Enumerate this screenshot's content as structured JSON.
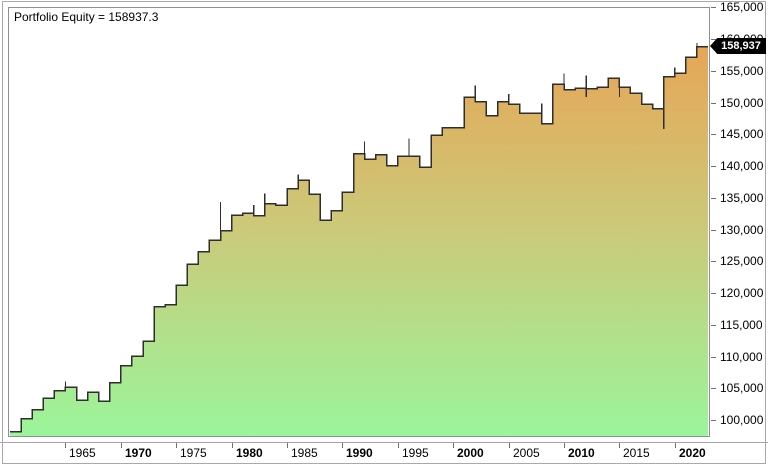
{
  "title": "Portfolio Equity = 158937.3",
  "chart_data": {
    "type": "area",
    "style": "step-area-annual",
    "title": "Portfolio Equity = 158937.3",
    "series_name": "Portfolio Equity",
    "final_value": 158937.3,
    "final_value_label": "158,937",
    "grid": "off",
    "legend_position": "none",
    "years": [
      1960,
      1961,
      1962,
      1963,
      1964,
      1965,
      1966,
      1967,
      1968,
      1969,
      1970,
      1971,
      1972,
      1973,
      1974,
      1975,
      1976,
      1977,
      1978,
      1979,
      1980,
      1981,
      1982,
      1983,
      1984,
      1985,
      1986,
      1987,
      1988,
      1989,
      1990,
      1991,
      1992,
      1993,
      1994,
      1995,
      1996,
      1997,
      1998,
      1999,
      2000,
      2001,
      2002,
      2003,
      2004,
      2005,
      2006,
      2007,
      2008,
      2009,
      2010,
      2011,
      2012,
      2013,
      2014,
      2015,
      2016,
      2017,
      2018,
      2019,
      2020,
      2021,
      2022
    ],
    "values": [
      98300,
      100400,
      101800,
      103600,
      104800,
      105300,
      103300,
      104500,
      103100,
      106000,
      108700,
      110200,
      112600,
      118000,
      118300,
      121400,
      124700,
      126700,
      128500,
      130000,
      132400,
      132700,
      132300,
      134200,
      134000,
      136600,
      137900,
      135700,
      131600,
      133100,
      136000,
      142100,
      141200,
      141900,
      140200,
      141700,
      141700,
      140000,
      145000,
      146200,
      146200,
      151000,
      150300,
      148100,
      150300,
      149900,
      148500,
      148500,
      146800,
      153000,
      152200,
      152400,
      152300,
      152600,
      154000,
      152600,
      151600,
      149900,
      149200,
      154200,
      154800,
      157300,
      158937.3
    ],
    "whiskers": [
      {
        "year": 1965,
        "high": 106200
      },
      {
        "year": 1979,
        "high": 134500
      },
      {
        "year": 1982,
        "high": 134000
      },
      {
        "year": 1983,
        "high": 135800
      },
      {
        "year": 1986,
        "high": 138800
      },
      {
        "year": 1992,
        "high": 144000
      },
      {
        "year": 1996,
        "high": 144500
      },
      {
        "year": 2002,
        "high": 152800
      },
      {
        "year": 2005,
        "high": 151500
      },
      {
        "year": 2008,
        "high": 150000
      },
      {
        "year": 2010,
        "high": 154700
      },
      {
        "year": 2012,
        "high": 154400,
        "low": 151000
      },
      {
        "year": 2015,
        "low": 151000
      },
      {
        "year": 2019,
        "low": 146000
      },
      {
        "year": 2020,
        "high": 155700
      },
      {
        "year": 2022,
        "high": 159500
      }
    ],
    "y_axis": {
      "min": 100000,
      "max": 165000,
      "step": 5000,
      "side": "right",
      "ticks": [
        {
          "value": 165000,
          "label": "165,000"
        },
        {
          "value": 160000,
          "label": "160,000"
        },
        {
          "value": 155000,
          "label": "155,000"
        },
        {
          "value": 150000,
          "label": "150,000"
        },
        {
          "value": 145000,
          "label": "145,000"
        },
        {
          "value": 140000,
          "label": "140,000"
        },
        {
          "value": 135000,
          "label": "135,000"
        },
        {
          "value": 130000,
          "label": "130,000"
        },
        {
          "value": 125000,
          "label": "125,000"
        },
        {
          "value": 120000,
          "label": "120,000"
        },
        {
          "value": 115000,
          "label": "115,000"
        },
        {
          "value": 110000,
          "label": "110,000"
        },
        {
          "value": 105000,
          "label": "105,000"
        },
        {
          "value": 100000,
          "label": "100,000"
        }
      ]
    },
    "x_axis": {
      "ticks": [
        {
          "year": 1965,
          "label": "1965",
          "bold": false
        },
        {
          "year": 1970,
          "label": "1970",
          "bold": true
        },
        {
          "year": 1975,
          "label": "1975",
          "bold": false
        },
        {
          "year": 1980,
          "label": "1980",
          "bold": true
        },
        {
          "year": 1985,
          "label": "1985",
          "bold": false
        },
        {
          "year": 1990,
          "label": "1990",
          "bold": true
        },
        {
          "year": 1995,
          "label": "1995",
          "bold": false
        },
        {
          "year": 2000,
          "label": "2000",
          "bold": true
        },
        {
          "year": 2005,
          "label": "2005",
          "bold": false
        },
        {
          "year": 2010,
          "label": "2010",
          "bold": true
        },
        {
          "year": 2015,
          "label": "2015",
          "bold": false
        },
        {
          "year": 2020,
          "label": "2020",
          "bold": true
        }
      ]
    },
    "colors": {
      "fill_top": "#E8A652",
      "fill_mid": "#CCC878",
      "fill_bottom": "#9BF59B",
      "line": "#2e2e2e",
      "marker_bg": "#000000",
      "marker_text": "#ffffff",
      "axis_text": "#000000",
      "border": "#8f8f8f"
    }
  }
}
